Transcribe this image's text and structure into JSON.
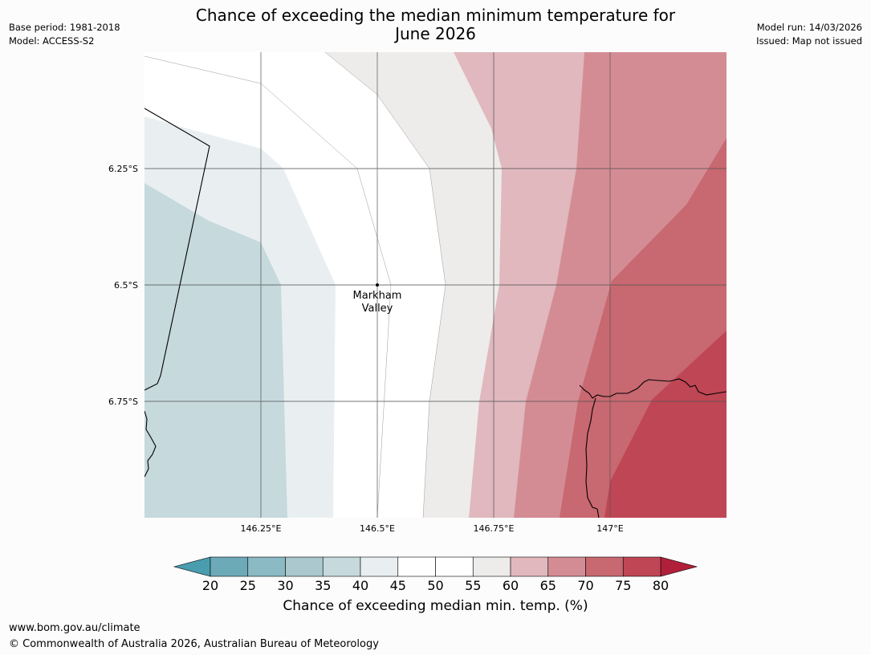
{
  "title_line1": "Chance of exceeding the median minimum temperature for",
  "title_line2": "June 2026",
  "meta_left": [
    "Base period: 1981-2018",
    "Model: ACCESS-S2"
  ],
  "meta_right": [
    "Model run: 14/03/2026",
    "Issued: Map not issued"
  ],
  "map": {
    "lat_labels": [
      "6.25°S",
      "6.5°S",
      "6.75°S"
    ],
    "lon_labels": [
      "146.25°E",
      "146.5°E",
      "146.75°E",
      "147°E"
    ],
    "place": {
      "name_line1": "Markham",
      "name_line2": "Valley"
    }
  },
  "colorbar": {
    "ticks": [
      "20",
      "25",
      "30",
      "35",
      "40",
      "45",
      "50",
      "55",
      "60",
      "65",
      "70",
      "75",
      "80"
    ],
    "colors": [
      "#6daab8",
      "#8bb9c4",
      "#aac8ce",
      "#c6d9dd",
      "#e9eff1",
      "#ffffff",
      "#ffffff",
      "#eeeceb",
      "#e0b8be",
      "#d48c94",
      "#c86870",
      "#bf4654"
    ],
    "under_color": "#4a9daf",
    "over_color": "#b0203a",
    "label": "Chance of exceeding median min. temp. (%)"
  },
  "footer": {
    "url": "www.bom.gov.au/climate",
    "copyright": "© Commonwealth of Australia 2026, Australian Bureau of Meteorology"
  }
}
